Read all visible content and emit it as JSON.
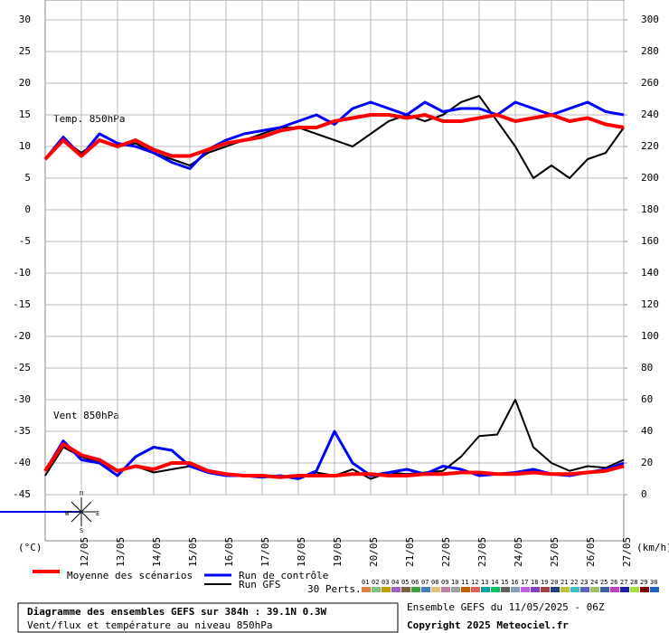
{
  "chart_data": {
    "type": "line",
    "temp_label": "Temp. 850hPa",
    "wind_label": "Vent 850hPa",
    "y_unit": "(°C)",
    "y2_unit": "(km/h)",
    "xlim": [
      0,
      384
    ],
    "xticks": [
      {
        "value": 24,
        "label": "12/05"
      },
      {
        "value": 48,
        "label": "13/05"
      },
      {
        "value": 72,
        "label": "14/05"
      },
      {
        "value": 96,
        "label": "15/05"
      },
      {
        "value": 120,
        "label": "16/05"
      },
      {
        "value": 144,
        "label": "17/05"
      },
      {
        "value": 168,
        "label": "18/05"
      },
      {
        "value": 192,
        "label": "19/05"
      },
      {
        "value": 216,
        "label": "20/05"
      },
      {
        "value": 240,
        "label": "21/05"
      },
      {
        "value": 264,
        "label": "22/05"
      },
      {
        "value": 288,
        "label": "23/05"
      },
      {
        "value": 312,
        "label": "24/05"
      },
      {
        "value": 336,
        "label": "25/05"
      },
      {
        "value": 360,
        "label": "26/05"
      },
      {
        "value": 384,
        "label": "27/05"
      }
    ],
    "ylim": [
      -45,
      33
    ],
    "yticks": [
      30,
      25,
      20,
      15,
      10,
      5,
      0,
      -5,
      -10,
      -15,
      -20,
      -25,
      -30,
      -35,
      -40,
      -45
    ],
    "y2lim": [
      0,
      312
    ],
    "y2ticks": [
      300,
      280,
      260,
      240,
      220,
      200,
      180,
      160,
      140,
      120,
      100,
      80,
      60,
      40,
      20,
      0
    ],
    "grid": true,
    "x": [
      0,
      12,
      24,
      36,
      48,
      60,
      72,
      84,
      96,
      108,
      120,
      132,
      144,
      156,
      168,
      180,
      192,
      204,
      216,
      228,
      240,
      252,
      264,
      276,
      288,
      300,
      312,
      324,
      336,
      348,
      360,
      372,
      384
    ],
    "series": [
      {
        "name": "Moyenne des scénarios",
        "color": "#ff0000",
        "axis": "y",
        "values": [
          8,
          11,
          8.5,
          11,
          10,
          11,
          9.5,
          8.5,
          8.5,
          9.5,
          10.5,
          11,
          11.5,
          12.5,
          13,
          13,
          14,
          14.5,
          15,
          15,
          14.5,
          15,
          14,
          14,
          14.5,
          15,
          14,
          14.5,
          15,
          14,
          14.5,
          13.5,
          13
        ]
      },
      {
        "name": "Run de contrôle",
        "color": "#0000ff",
        "axis": "y",
        "values": [
          8,
          11.5,
          8.5,
          12,
          10.5,
          10,
          9,
          7.5,
          6.5,
          9.5,
          11,
          12,
          12.5,
          13,
          14,
          15,
          13.5,
          16,
          17,
          16,
          15,
          17,
          15.5,
          16,
          16,
          15,
          17,
          16,
          15,
          16,
          17,
          15.5,
          15
        ]
      },
      {
        "name": "Run GFS",
        "color": "#000000",
        "axis": "y",
        "values": [
          8,
          11,
          9,
          11,
          10,
          10.5,
          9,
          8,
          7,
          9,
          10,
          11,
          12,
          13,
          13,
          12,
          11,
          10,
          12,
          14,
          15,
          14,
          15,
          17,
          18,
          14,
          10,
          5,
          7,
          5,
          8,
          9,
          13
        ]
      }
    ],
    "wind_series": [
      {
        "color": "#ff0000",
        "axis": "y2",
        "values": [
          15,
          32,
          25,
          22,
          15,
          18,
          16,
          20,
          20,
          15,
          13,
          12,
          12,
          11,
          12,
          12,
          12,
          13,
          13,
          12,
          12,
          13,
          13,
          14,
          14,
          13,
          13,
          14,
          13,
          13,
          14,
          15,
          18
        ]
      },
      {
        "color": "#0000ff",
        "axis": "y2",
        "values": [
          15,
          34,
          22,
          20,
          12,
          24,
          30,
          28,
          18,
          14,
          12,
          12,
          11,
          12,
          10,
          15,
          40,
          20,
          12,
          14,
          16,
          13,
          18,
          16,
          12,
          13,
          14,
          16,
          13,
          12,
          14,
          16,
          20
        ]
      },
      {
        "color": "#000000",
        "axis": "y2",
        "values": [
          12,
          30,
          24,
          20,
          15,
          18,
          14,
          16,
          18,
          14,
          12,
          12,
          12,
          12,
          10,
          14,
          12,
          16,
          10,
          14,
          13,
          14,
          15,
          24,
          37,
          38,
          60,
          30,
          20,
          15,
          18,
          17,
          22
        ]
      }
    ],
    "rose_labels": [
      "N",
      "W",
      "E",
      "S"
    ],
    "perts_label": "30 Perts.",
    "perts": [
      {
        "name": "01",
        "color": "#e08040"
      },
      {
        "name": "02",
        "color": "#80c080"
      },
      {
        "name": "03",
        "color": "#c0a000"
      },
      {
        "name": "04",
        "color": "#a060c0"
      },
      {
        "name": "05",
        "color": "#806040"
      },
      {
        "name": "06",
        "color": "#40a040"
      },
      {
        "name": "07",
        "color": "#4080c0"
      },
      {
        "name": "08",
        "color": "#e0c080"
      },
      {
        "name": "09",
        "color": "#c080a0"
      },
      {
        "name": "10",
        "color": "#a0a0a0"
      },
      {
        "name": "11",
        "color": "#c06000"
      },
      {
        "name": "12",
        "color": "#e06060"
      },
      {
        "name": "13",
        "color": "#00a0a0"
      },
      {
        "name": "14",
        "color": "#00c060"
      },
      {
        "name": "15",
        "color": "#606060"
      },
      {
        "name": "16",
        "color": "#80a0c0"
      },
      {
        "name": "17",
        "color": "#c060e0"
      },
      {
        "name": "18",
        "color": "#8040c0"
      },
      {
        "name": "19",
        "color": "#a04040"
      },
      {
        "name": "20",
        "color": "#204080"
      },
      {
        "name": "21",
        "color": "#c0c040"
      },
      {
        "name": "22",
        "color": "#40c0c0"
      },
      {
        "name": "23",
        "color": "#6060c0"
      },
      {
        "name": "24",
        "color": "#a0c060"
      },
      {
        "name": "25",
        "color": "#4060a0"
      },
      {
        "name": "26",
        "color": "#c040c0"
      },
      {
        "name": "27",
        "color": "#2020a0"
      },
      {
        "name": "28",
        "color": "#a0e040"
      },
      {
        "name": "29",
        "color": "#800000"
      },
      {
        "name": "30",
        "color": "#2060c0"
      }
    ],
    "box_title": "Diagramme des ensembles GEFS sur 384h : 39.1N 0.3W",
    "box_subtitle": "Vent/flux et température au niveau 850hPa",
    "run_info": "Ensemble GEFS du 11/05/2025 - 06Z",
    "copyright": "Copyright 2025 Meteociel.fr"
  }
}
